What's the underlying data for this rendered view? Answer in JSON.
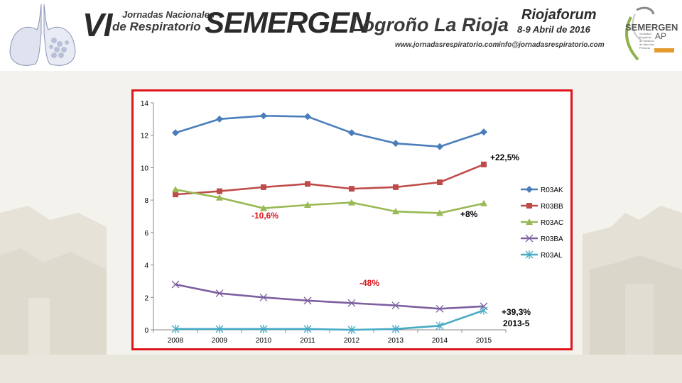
{
  "header": {
    "edition": "VI",
    "jornadas_line1": "Jornadas Nacionales",
    "jornadas_line2": "de Respiratorio",
    "event_name": "SEMERGEN",
    "city": "Logroño  La Rioja",
    "website": "www.jornadasrespiratorio.com",
    "email": "info@jornadasrespiratorio.com",
    "venue": "Riojaforum",
    "dates": "8-9 Abril de 2016",
    "org_name": "SEMERGEN",
    "org_ap": "AP",
    "org_subtitle": "Sociedad Española de Médicos de Atención Primaria"
  },
  "colors": {
    "frame": "#e0161c",
    "annotation_red": "#d9151b",
    "annotation_black": "#000000"
  },
  "chart_data": {
    "type": "line",
    "x": [
      "2008",
      "2009",
      "2010",
      "2011",
      "2012",
      "2013",
      "2014",
      "2015"
    ],
    "ylim": [
      0,
      14
    ],
    "yticks": [
      0,
      2,
      4,
      6,
      8,
      10,
      12,
      14
    ],
    "grid": false,
    "legend_position": "right",
    "series": [
      {
        "name": "R03AK",
        "color": "#4a7ebb",
        "marker": "diamond",
        "values": [
          12.15,
          13.0,
          13.2,
          13.15,
          12.15,
          11.5,
          11.3,
          12.2
        ]
      },
      {
        "name": "R03BB",
        "color": "#be4b48",
        "marker": "square",
        "values": [
          8.35,
          8.55,
          8.8,
          9.0,
          8.7,
          8.8,
          9.1,
          10.2
        ]
      },
      {
        "name": "R03AC",
        "color": "#98b954",
        "marker": "triangle",
        "values": [
          8.65,
          8.15,
          7.5,
          7.7,
          7.85,
          7.3,
          7.2,
          7.8
        ]
      },
      {
        "name": "R03BA",
        "color": "#7d60a0",
        "marker": "x",
        "values": [
          2.8,
          2.25,
          2.0,
          1.8,
          1.65,
          1.5,
          1.3,
          1.45
        ]
      },
      {
        "name": "R03AL",
        "color": "#46aac5",
        "marker": "star",
        "values": [
          0.05,
          0.05,
          0.05,
          0.05,
          0.0,
          0.05,
          0.25,
          1.2
        ]
      }
    ],
    "annotations": [
      {
        "text": "+22,5%",
        "color": "red_no",
        "style": "black"
      },
      {
        "text": "-10,6%",
        "style": "red"
      },
      {
        "text": "+8%",
        "style": "black"
      },
      {
        "text": "-48%",
        "style": "red"
      },
      {
        "text": "+39,3%",
        "style": "black"
      },
      {
        "text": "2013-5",
        "style": "black"
      }
    ]
  }
}
